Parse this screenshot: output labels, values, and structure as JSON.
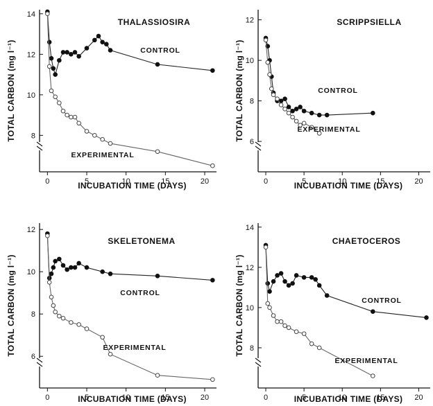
{
  "figure": {
    "xlabel": "INCUBATION  TIME (DAYS)",
    "ylabel": "TOTAL  CARBON (mg l⁻¹)"
  },
  "chart_data": [
    {
      "type": "line",
      "title": "THALASSIOSIRA",
      "xlabel": "INCUBATION  TIME (DAYS)",
      "ylabel": "TOTAL  CARBON (mg l⁻¹)",
      "xlim": [
        -1,
        21.5
      ],
      "ylim": [
        6.2,
        14.2
      ],
      "xticks": [
        0,
        5,
        10,
        15,
        20
      ],
      "yticks": [
        8,
        10,
        12,
        14
      ],
      "grid": false,
      "series": [
        {
          "name": "CONTROL",
          "x": [
            0,
            0.25,
            0.5,
            0.75,
            1,
            1.5,
            2,
            2.5,
            3,
            3.5,
            4,
            5,
            6,
            6.5,
            7,
            7.5,
            8,
            14,
            21
          ],
          "y": [
            14.1,
            12.6,
            11.8,
            11.3,
            11.0,
            11.7,
            12.1,
            12.1,
            12.0,
            12.1,
            11.9,
            12.3,
            12.7,
            12.9,
            12.6,
            12.5,
            12.2,
            11.5,
            11.2
          ]
        },
        {
          "name": "EXPERIMENTAL",
          "x": [
            0,
            0.25,
            0.5,
            1,
            1.5,
            2,
            2.5,
            3,
            3.5,
            4,
            5,
            6,
            7,
            8,
            14,
            21
          ],
          "y": [
            14.0,
            11.4,
            10.2,
            9.9,
            9.6,
            9.2,
            9.0,
            8.9,
            8.9,
            8.6,
            8.2,
            8.0,
            7.8,
            7.6,
            7.2,
            6.5
          ]
        }
      ]
    },
    {
      "type": "line",
      "title": "SCRIPPSIELLA",
      "xlabel": "INCUBATION  TIME (DAYS)",
      "ylabel": "TOTAL  CARBON (mg l⁻¹)",
      "xlim": [
        -1,
        21.5
      ],
      "ylim": [
        4.5,
        12.5
      ],
      "xticks": [
        0,
        5,
        10,
        15,
        20
      ],
      "yticks": [
        6,
        8,
        10,
        12
      ],
      "grid": false,
      "series": [
        {
          "name": "CONTROL",
          "x": [
            0,
            0.25,
            0.5,
            0.75,
            1,
            1.5,
            2,
            2.5,
            3,
            3.5,
            4,
            4.5,
            5,
            6,
            7,
            8,
            14
          ],
          "y": [
            11.1,
            10.7,
            10.0,
            9.2,
            8.4,
            8.0,
            8.0,
            8.1,
            7.7,
            7.5,
            7.6,
            7.7,
            7.5,
            7.4,
            7.3,
            7.3,
            7.4
          ]
        },
        {
          "name": "EXPERIMENTAL",
          "x": [
            0,
            0.25,
            0.5,
            0.75,
            1,
            1.5,
            2,
            2.5,
            3,
            3.5,
            4,
            4.5,
            5,
            6,
            7
          ],
          "y": [
            11.0,
            9.9,
            9.3,
            8.6,
            8.3,
            8.1,
            7.8,
            7.6,
            7.4,
            7.2,
            7.0,
            6.8,
            6.9,
            6.7,
            6.4
          ]
        }
      ]
    },
    {
      "type": "line",
      "title": "SKELETONEMA",
      "xlabel": "INCUBATION  TIME (DAYS)",
      "ylabel": "TOTAL  CARBON (mg l⁻¹)",
      "xlim": [
        -1,
        21.5
      ],
      "ylim": [
        4.5,
        12.3
      ],
      "xticks": [
        0,
        5,
        10,
        15,
        20
      ],
      "yticks": [
        6,
        8,
        10,
        12
      ],
      "grid": false,
      "series": [
        {
          "name": "CONTROL",
          "x": [
            0,
            0.25,
            0.5,
            0.75,
            1,
            1.5,
            2,
            2.5,
            3,
            3.5,
            4,
            5,
            7,
            8,
            14,
            21
          ],
          "y": [
            11.8,
            9.7,
            9.9,
            10.2,
            10.5,
            10.6,
            10.3,
            10.1,
            10.2,
            10.2,
            10.4,
            10.2,
            10.0,
            9.9,
            9.8,
            9.6
          ]
        },
        {
          "name": "EXPERIMENTAL",
          "x": [
            0,
            0.25,
            0.5,
            0.75,
            1,
            1.5,
            2,
            3,
            4,
            5,
            7,
            8,
            14,
            21
          ],
          "y": [
            11.7,
            9.5,
            8.8,
            8.4,
            8.1,
            7.9,
            7.8,
            7.6,
            7.5,
            7.3,
            6.9,
            6.1,
            5.1,
            4.9
          ]
        }
      ]
    },
    {
      "type": "line",
      "title": "CHAETOCEROS",
      "xlabel": "INCUBATION  TIME (DAYS)",
      "ylabel": "TOTAL  CARBON (mg l⁻¹)",
      "xlim": [
        -1,
        21.5
      ],
      "ylim": [
        6.0,
        14.2
      ],
      "xticks": [
        0,
        5,
        10,
        15,
        20
      ],
      "yticks": [
        8,
        10,
        12,
        14
      ],
      "grid": false,
      "series": [
        {
          "name": "CONTROL",
          "x": [
            0,
            0.25,
            0.5,
            1,
            1.5,
            2,
            2.5,
            3,
            3.5,
            4,
            5,
            6,
            6.5,
            7,
            8,
            14,
            21
          ],
          "y": [
            13.1,
            11.2,
            10.8,
            11.3,
            11.6,
            11.7,
            11.3,
            11.1,
            11.2,
            11.6,
            11.5,
            11.5,
            11.4,
            11.1,
            10.6,
            9.8,
            9.5
          ]
        },
        {
          "name": "EXPERIMENTAL",
          "x": [
            0,
            0.25,
            0.5,
            1,
            1.5,
            2,
            2.5,
            3,
            4,
            5,
            6,
            7,
            14
          ],
          "y": [
            13.0,
            10.2,
            10.0,
            9.6,
            9.3,
            9.3,
            9.1,
            9.0,
            8.8,
            8.7,
            8.2,
            8.0,
            6.6
          ]
        }
      ]
    }
  ]
}
